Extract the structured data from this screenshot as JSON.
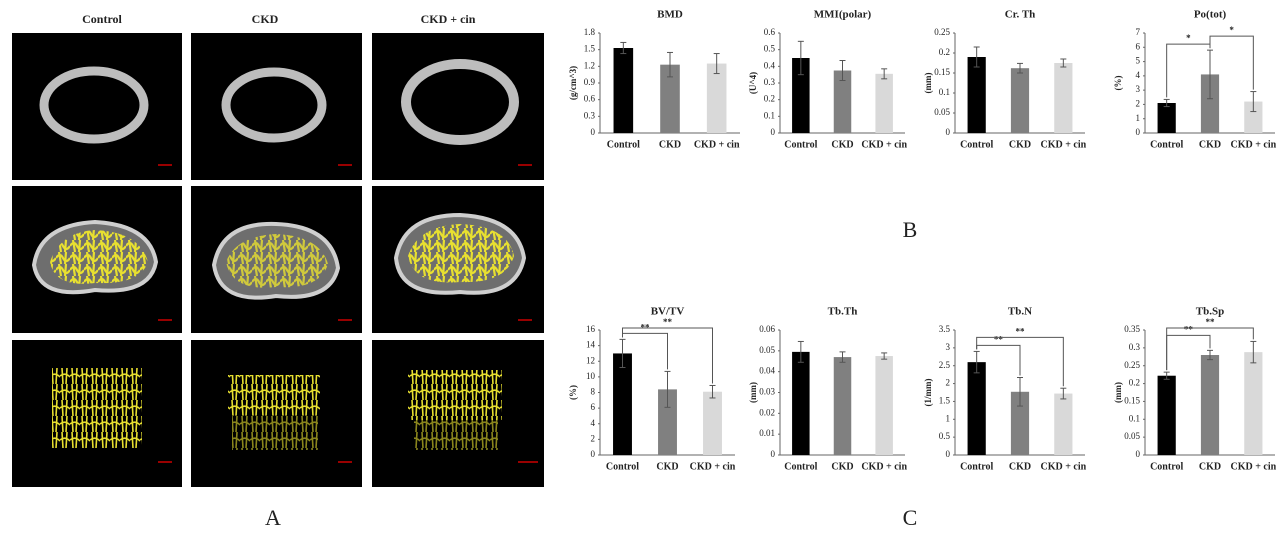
{
  "panel_a": {
    "columns": [
      "Control",
      "CKD",
      "CKD + cin"
    ],
    "label": "A"
  },
  "panel_labels": {
    "b": "B",
    "c": "C"
  },
  "chart_data": [
    {
      "type": "bar",
      "title": "BMD",
      "y_label": "(g/cm^3)",
      "categories": [
        "Control",
        "CKD",
        "CKD + cin"
      ],
      "values": [
        1.53,
        1.23,
        1.25
      ],
      "errors": [
        0.1,
        0.22,
        0.18
      ],
      "colors": [
        "#000000",
        "#808080",
        "#d9d9d9"
      ],
      "ylim": [
        0,
        1.8
      ],
      "yticks": [
        0,
        0.3,
        0.6,
        0.9,
        1.2,
        1.5,
        1.8
      ],
      "annotations": []
    },
    {
      "type": "bar",
      "title": "MMI(polar)",
      "y_label": "(U^4)",
      "categories": [
        "Control",
        "CKD",
        "CKD + cin"
      ],
      "values": [
        0.45,
        0.375,
        0.355
      ],
      "errors": [
        0.1,
        0.06,
        0.03
      ],
      "colors": [
        "#000000",
        "#808080",
        "#d9d9d9"
      ],
      "ylim": [
        0,
        0.6
      ],
      "yticks": [
        0,
        0.1,
        0.2,
        0.3,
        0.4,
        0.5,
        0.6
      ],
      "annotations": []
    },
    {
      "type": "bar",
      "title": "Cr. Th",
      "y_label": "(mm)",
      "categories": [
        "Control",
        "CKD",
        "CKD + cin"
      ],
      "values": [
        0.19,
        0.162,
        0.175
      ],
      "errors": [
        0.025,
        0.012,
        0.01
      ],
      "colors": [
        "#000000",
        "#808080",
        "#d9d9d9"
      ],
      "ylim": [
        0,
        0.25
      ],
      "yticks": [
        0,
        0.05,
        0.1,
        0.15,
        0.2,
        0.25
      ],
      "annotations": []
    },
    {
      "type": "bar",
      "title": "Po(tot)",
      "y_label": "(%)",
      "categories": [
        "Control",
        "CKD",
        "CKD + cin"
      ],
      "values": [
        2.1,
        4.1,
        2.2
      ],
      "errors": [
        0.25,
        1.7,
        0.7
      ],
      "colors": [
        "#000000",
        "#808080",
        "#d9d9d9"
      ],
      "ylim": [
        0,
        7
      ],
      "yticks": [
        0,
        1,
        2,
        3,
        4,
        5,
        6,
        7
      ],
      "annotations": [
        {
          "text": "*",
          "between": [
            "Control",
            "CKD"
          ]
        },
        {
          "text": "*",
          "between": [
            "CKD",
            "CKD + cin"
          ]
        }
      ]
    },
    {
      "type": "bar",
      "title": "BV/TV",
      "y_label": "(%)",
      "categories": [
        "Control",
        "CKD",
        "CKD + cin"
      ],
      "values": [
        13,
        8.4,
        8.1
      ],
      "errors": [
        1.8,
        2.3,
        0.8
      ],
      "colors": [
        "#000000",
        "#808080",
        "#d9d9d9"
      ],
      "ylim": [
        0,
        16
      ],
      "yticks": [
        0,
        2,
        4,
        6,
        8,
        10,
        12,
        14,
        16
      ],
      "annotations": [
        {
          "text": "**",
          "between": [
            "Control",
            "CKD"
          ]
        },
        {
          "text": "**",
          "between": [
            "Control",
            "CKD + cin"
          ]
        }
      ]
    },
    {
      "type": "bar",
      "title": "Tb.Th",
      "y_label": "(mm)",
      "categories": [
        "Control",
        "CKD",
        "CKD + cin"
      ],
      "values": [
        0.0495,
        0.047,
        0.0475
      ],
      "errors": [
        0.005,
        0.0025,
        0.0015
      ],
      "colors": [
        "#000000",
        "#808080",
        "#d9d9d9"
      ],
      "ylim": [
        0,
        0.06
      ],
      "yticks": [
        0,
        0.01,
        0.02,
        0.03,
        0.04,
        0.05,
        0.06
      ],
      "annotations": []
    },
    {
      "type": "bar",
      "title": "Tb.N",
      "y_label": "(1/mm)",
      "categories": [
        "Control",
        "CKD",
        "CKD + cin"
      ],
      "values": [
        2.6,
        1.77,
        1.72
      ],
      "errors": [
        0.3,
        0.4,
        0.15
      ],
      "colors": [
        "#000000",
        "#808080",
        "#d9d9d9"
      ],
      "ylim": [
        0,
        3.5
      ],
      "yticks": [
        0,
        0.5,
        1,
        1.5,
        2,
        2.5,
        3,
        3.5
      ],
      "annotations": [
        {
          "text": "**",
          "between": [
            "Control",
            "CKD"
          ]
        },
        {
          "text": "**",
          "between": [
            "Control",
            "CKD + cin"
          ]
        }
      ]
    },
    {
      "type": "bar",
      "title": "Tb.Sp",
      "y_label": "(mm)",
      "categories": [
        "Control",
        "CKD",
        "CKD + cin"
      ],
      "values": [
        0.222,
        0.28,
        0.288
      ],
      "errors": [
        0.01,
        0.013,
        0.03
      ],
      "colors": [
        "#000000",
        "#808080",
        "#d9d9d9"
      ],
      "ylim": [
        0,
        0.35
      ],
      "yticks": [
        0,
        0.05,
        0.1,
        0.15,
        0.2,
        0.25,
        0.3,
        0.35
      ],
      "annotations": [
        {
          "text": "**",
          "between": [
            "Control",
            "CKD"
          ]
        },
        {
          "text": "**",
          "between": [
            "Control",
            "CKD + cin"
          ]
        }
      ]
    }
  ]
}
